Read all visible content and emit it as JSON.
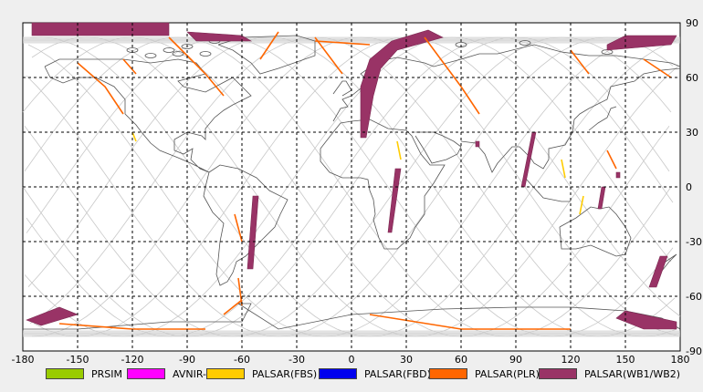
{
  "axes": {
    "x_ticks": [
      "-180",
      "-150",
      "-120",
      "-90",
      "-60",
      "-30",
      "0",
      "30",
      "60",
      "90",
      "120",
      "150",
      "180"
    ],
    "y_ticks": [
      "90",
      "60",
      "30",
      "0",
      "-30",
      "-60",
      "-90"
    ]
  },
  "legend": [
    {
      "label": "PRSIM",
      "color": "#99cc00"
    },
    {
      "label": "AVNIR-2",
      "color": "#ff00ff"
    },
    {
      "label": "PALSAR(FBS)",
      "color": "#ffcc00"
    },
    {
      "label": "PALSAR(FBD)",
      "color": "#0000ee"
    },
    {
      "label": "PALSAR(PLR)",
      "color": "#ff6600"
    },
    {
      "label": "PALSAR(WB1/WB2)",
      "color": "#993366"
    }
  ],
  "chart_data": {
    "type": "map",
    "projection": "equirectangular",
    "xlim": [
      -180,
      180
    ],
    "ylim": [
      -90,
      90
    ],
    "grid": true,
    "swaths_wb": [
      [
        [
          -175,
          90
        ],
        [
          -100,
          90
        ],
        [
          -100,
          83
        ],
        [
          -175,
          83
        ]
      ],
      [
        [
          -90,
          85
        ],
        [
          -60,
          83
        ],
        [
          -55,
          80
        ],
        [
          -85,
          80
        ]
      ],
      [
        [
          5,
          27
        ],
        [
          8,
          27
        ],
        [
          12,
          50
        ],
        [
          16,
          65
        ],
        [
          25,
          75
        ],
        [
          50,
          82
        ],
        [
          42,
          86
        ],
        [
          22,
          80
        ],
        [
          10,
          70
        ],
        [
          5,
          55
        ]
      ],
      [
        [
          22,
          -25
        ],
        [
          20,
          -25
        ],
        [
          24,
          10
        ],
        [
          27,
          10
        ]
      ],
      [
        [
          -57,
          -45
        ],
        [
          -54,
          -45
        ],
        [
          -51,
          -5
        ],
        [
          -54,
          -5
        ]
      ],
      [
        [
          95,
          0
        ],
        [
          93,
          0
        ],
        [
          99,
          30
        ],
        [
          101,
          30
        ]
      ],
      [
        [
          68,
          25
        ],
        [
          70,
          25
        ],
        [
          70,
          22
        ],
        [
          68,
          22
        ]
      ],
      [
        [
          135,
          -12
        ],
        [
          137,
          -12
        ],
        [
          139,
          0
        ],
        [
          137,
          0
        ]
      ],
      [
        [
          145,
          5
        ],
        [
          147,
          5
        ],
        [
          147,
          8
        ],
        [
          145,
          8
        ]
      ],
      [
        [
          163,
          -55
        ],
        [
          167,
          -55
        ],
        [
          173,
          -38
        ],
        [
          169,
          -38
        ]
      ],
      [
        [
          140,
          75
        ],
        [
          175,
          78
        ],
        [
          178,
          83
        ],
        [
          150,
          83
        ],
        [
          140,
          78
        ]
      ],
      [
        [
          -178,
          -73
        ],
        [
          -160,
          -66
        ],
        [
          -150,
          -70
        ],
        [
          -170,
          -76
        ]
      ],
      [
        [
          150,
          -68
        ],
        [
          178,
          -74
        ],
        [
          178,
          -78
        ],
        [
          160,
          -78
        ],
        [
          145,
          -72
        ]
      ]
    ],
    "tracks_plr": [
      [
        [
          -150,
          68
        ],
        [
          -135,
          55
        ],
        [
          -125,
          40
        ]
      ],
      [
        [
          -125,
          70
        ],
        [
          -118,
          62
        ]
      ],
      [
        [
          -60,
          -30
        ],
        [
          -64,
          -15
        ]
      ],
      [
        [
          -62,
          -50
        ],
        [
          -60,
          -65
        ]
      ],
      [
        [
          -100,
          82
        ],
        [
          -80,
          62
        ],
        [
          -70,
          50
        ]
      ],
      [
        [
          -20,
          82
        ],
        [
          -5,
          62
        ]
      ],
      [
        [
          40,
          82
        ],
        [
          60,
          55
        ],
        [
          70,
          40
        ]
      ],
      [
        [
          120,
          75
        ],
        [
          130,
          62
        ]
      ],
      [
        [
          140,
          20
        ],
        [
          145,
          10
        ]
      ],
      [
        [
          -40,
          85
        ],
        [
          -50,
          70
        ]
      ],
      [
        [
          -160,
          -75
        ],
        [
          -120,
          -78
        ],
        [
          -80,
          -78
        ]
      ],
      [
        [
          -60,
          -62
        ],
        [
          -70,
          -70
        ]
      ],
      [
        [
          10,
          -70
        ],
        [
          60,
          -78
        ],
        [
          120,
          -78
        ]
      ],
      [
        [
          -20,
          80
        ],
        [
          10,
          78
        ]
      ],
      [
        [
          160,
          70
        ],
        [
          175,
          60
        ]
      ]
    ],
    "tracks_fbs": [
      [
        [
          -120,
          30
        ],
        [
          -118,
          25
        ]
      ],
      [
        [
          115,
          15
        ],
        [
          117,
          5
        ]
      ],
      [
        [
          127,
          -5
        ],
        [
          125,
          -15
        ]
      ],
      [
        [
          25,
          25
        ],
        [
          27,
          15
        ]
      ]
    ]
  }
}
